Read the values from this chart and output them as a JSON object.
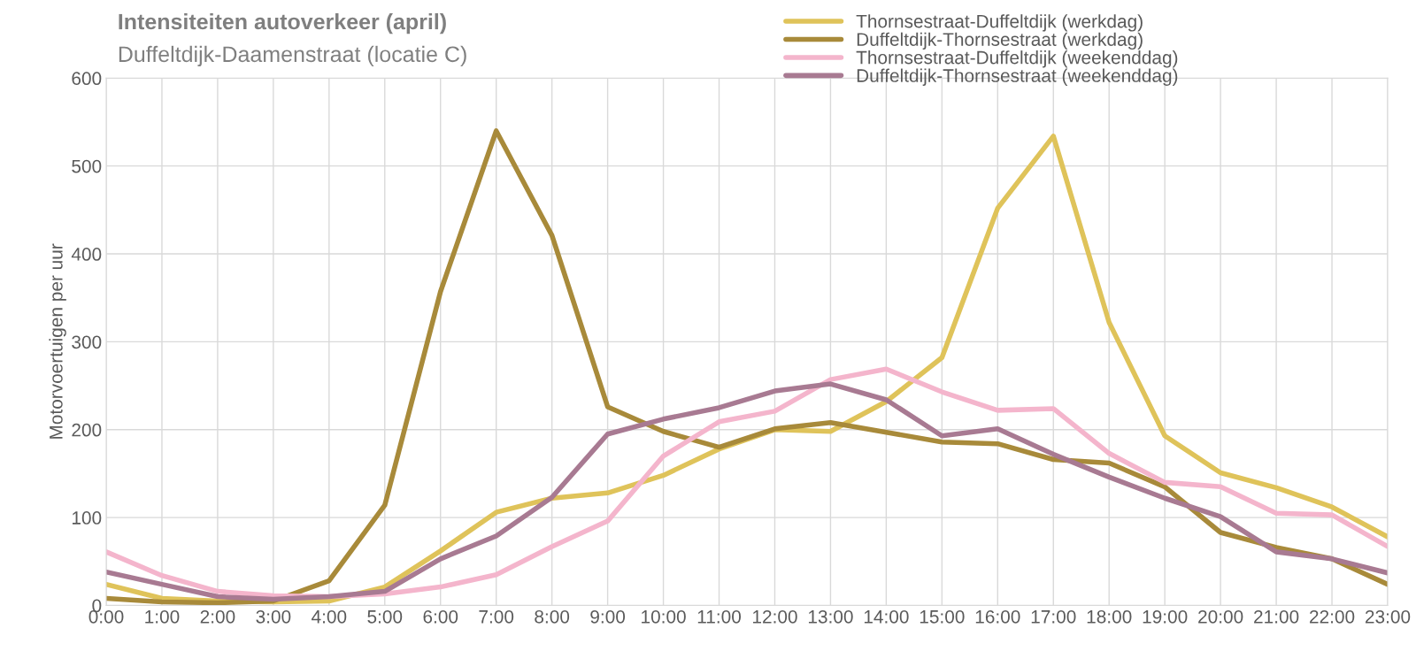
{
  "chart_data": {
    "type": "line",
    "title": "Intensiteiten autoverkeer (april)",
    "subtitle": "Duffeltdijk-Daamenstraat (locatie C)",
    "ylabel": "Motorvoertuigen per uur",
    "categories": [
      "0:00",
      "1:00",
      "2:00",
      "3:00",
      "4:00",
      "5:00",
      "6:00",
      "7:00",
      "8:00",
      "9:00",
      "10:00",
      "11:00",
      "12:00",
      "13:00",
      "14:00",
      "15:00",
      "16:00",
      "17:00",
      "18:00",
      "19:00",
      "20:00",
      "21:00",
      "22:00",
      "23:00"
    ],
    "series": [
      {
        "name": "Thornsestraat-Duffeltdijk (werkdag)",
        "color": "#dfc35a",
        "values": [
          24,
          8,
          5,
          4,
          5,
          21,
          62,
          106,
          122,
          128,
          148,
          178,
          200,
          198,
          232,
          282,
          452,
          534,
          322,
          193,
          151,
          134,
          112,
          78
        ]
      },
      {
        "name": "Duffeltdijk-Thornsestraat (werkdag)",
        "color": "#a88a3a",
        "values": [
          8,
          4,
          3,
          5,
          28,
          114,
          357,
          540,
          421,
          226,
          198,
          180,
          201,
          208,
          197,
          186,
          184,
          166,
          162,
          135,
          83,
          66,
          53,
          24
        ]
      },
      {
        "name": "Thornsestraat-Duffeltdijk (weekenddag)",
        "color": "#f4b5cc",
        "values": [
          61,
          34,
          16,
          11,
          10,
          13,
          21,
          35,
          67,
          96,
          170,
          209,
          221,
          257,
          269,
          243,
          222,
          224,
          173,
          140,
          135,
          105,
          103,
          67
        ]
      },
      {
        "name": "Duffeltdijk-Thornsestraat (weekenddag)",
        "color": "#a87a92",
        "values": [
          38,
          24,
          10,
          7,
          10,
          16,
          53,
          79,
          123,
          195,
          212,
          225,
          244,
          252,
          234,
          193,
          201,
          172,
          146,
          122,
          101,
          61,
          53,
          37
        ]
      }
    ],
    "ylim": [
      0,
      600
    ],
    "yticks": [
      0,
      100,
      200,
      300,
      400,
      500,
      600
    ],
    "grid": true,
    "legend": "top right",
    "line_style": "solid",
    "marker": "none"
  }
}
